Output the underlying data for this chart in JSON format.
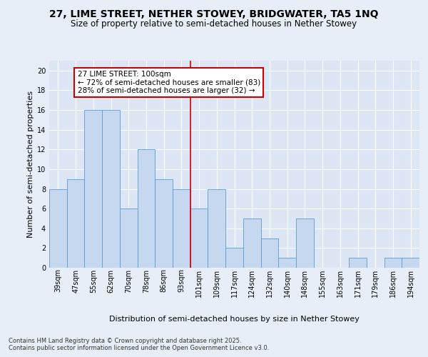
{
  "title": "27, LIME STREET, NETHER STOWEY, BRIDGWATER, TA5 1NQ",
  "subtitle": "Size of property relative to semi-detached houses in Nether Stowey",
  "xlabel": "Distribution of semi-detached houses by size in Nether Stowey",
  "ylabel": "Number of semi-detached properties",
  "categories": [
    "39sqm",
    "47sqm",
    "55sqm",
    "62sqm",
    "70sqm",
    "78sqm",
    "86sqm",
    "93sqm",
    "101sqm",
    "109sqm",
    "117sqm",
    "124sqm",
    "132sqm",
    "140sqm",
    "148sqm",
    "155sqm",
    "163sqm",
    "171sqm",
    "179sqm",
    "186sqm",
    "194sqm"
  ],
  "values": [
    8,
    9,
    16,
    16,
    6,
    12,
    9,
    8,
    6,
    8,
    2,
    5,
    3,
    1,
    5,
    0,
    0,
    1,
    0,
    1,
    1
  ],
  "bar_color": "#c5d8f0",
  "bar_edge_color": "#5b9bd5",
  "vline_x_index": 8,
  "vline_color": "#cc0000",
  "annotation_line1": "27 LIME STREET: 100sqm",
  "annotation_line2": "← 72% of semi-detached houses are smaller (83)",
  "annotation_line3": "28% of semi-detached houses are larger (32) →",
  "annotation_box_color": "#ffffff",
  "annotation_box_edge_color": "#cc0000",
  "background_color": "#e8eef8",
  "plot_bg_color": "#dce6f5",
  "footer_text": "Contains HM Land Registry data © Crown copyright and database right 2025.\nContains public sector information licensed under the Open Government Licence v3.0.",
  "ylim": [
    0,
    21
  ],
  "yticks": [
    0,
    2,
    4,
    6,
    8,
    10,
    12,
    14,
    16,
    18,
    20
  ],
  "title_fontsize": 10,
  "subtitle_fontsize": 8.5,
  "axis_label_fontsize": 8,
  "tick_fontsize": 7,
  "annotation_fontsize": 7.5,
  "footer_fontsize": 6,
  "ylabel_fontsize": 8
}
